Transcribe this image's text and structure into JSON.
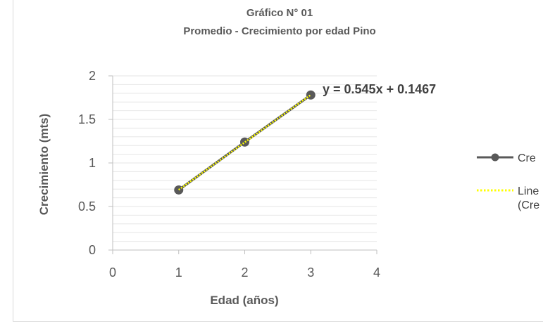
{
  "chart_data": {
    "type": "line",
    "title": "Gráfico N° 01",
    "subtitle": "Promedio - Crecimiento por edad Pino",
    "xlabel": "Edad (años)",
    "ylabel": "Crecimiento (mts)",
    "xlim": [
      0,
      4
    ],
    "ylim": [
      0,
      2
    ],
    "x_ticks": [
      "0",
      "1",
      "2",
      "3",
      "4"
    ],
    "y_ticks": [
      "0",
      "0.5",
      "1",
      "1.5",
      "2"
    ],
    "grid": true,
    "series": [
      {
        "name": "Cre",
        "x": [
          1,
          2,
          3
        ],
        "y": [
          0.69,
          1.24,
          1.78
        ],
        "color": "#595959",
        "marker": "circle"
      }
    ],
    "trendline": {
      "name_lines": [
        "Line",
        "(Cre"
      ],
      "slope": 0.545,
      "intercept": 0.1467,
      "x_range": [
        1,
        3
      ],
      "color": "#ffff00",
      "style": "dotted",
      "equation": "y = 0.545x + 0.1467"
    },
    "legend_position": "right"
  }
}
